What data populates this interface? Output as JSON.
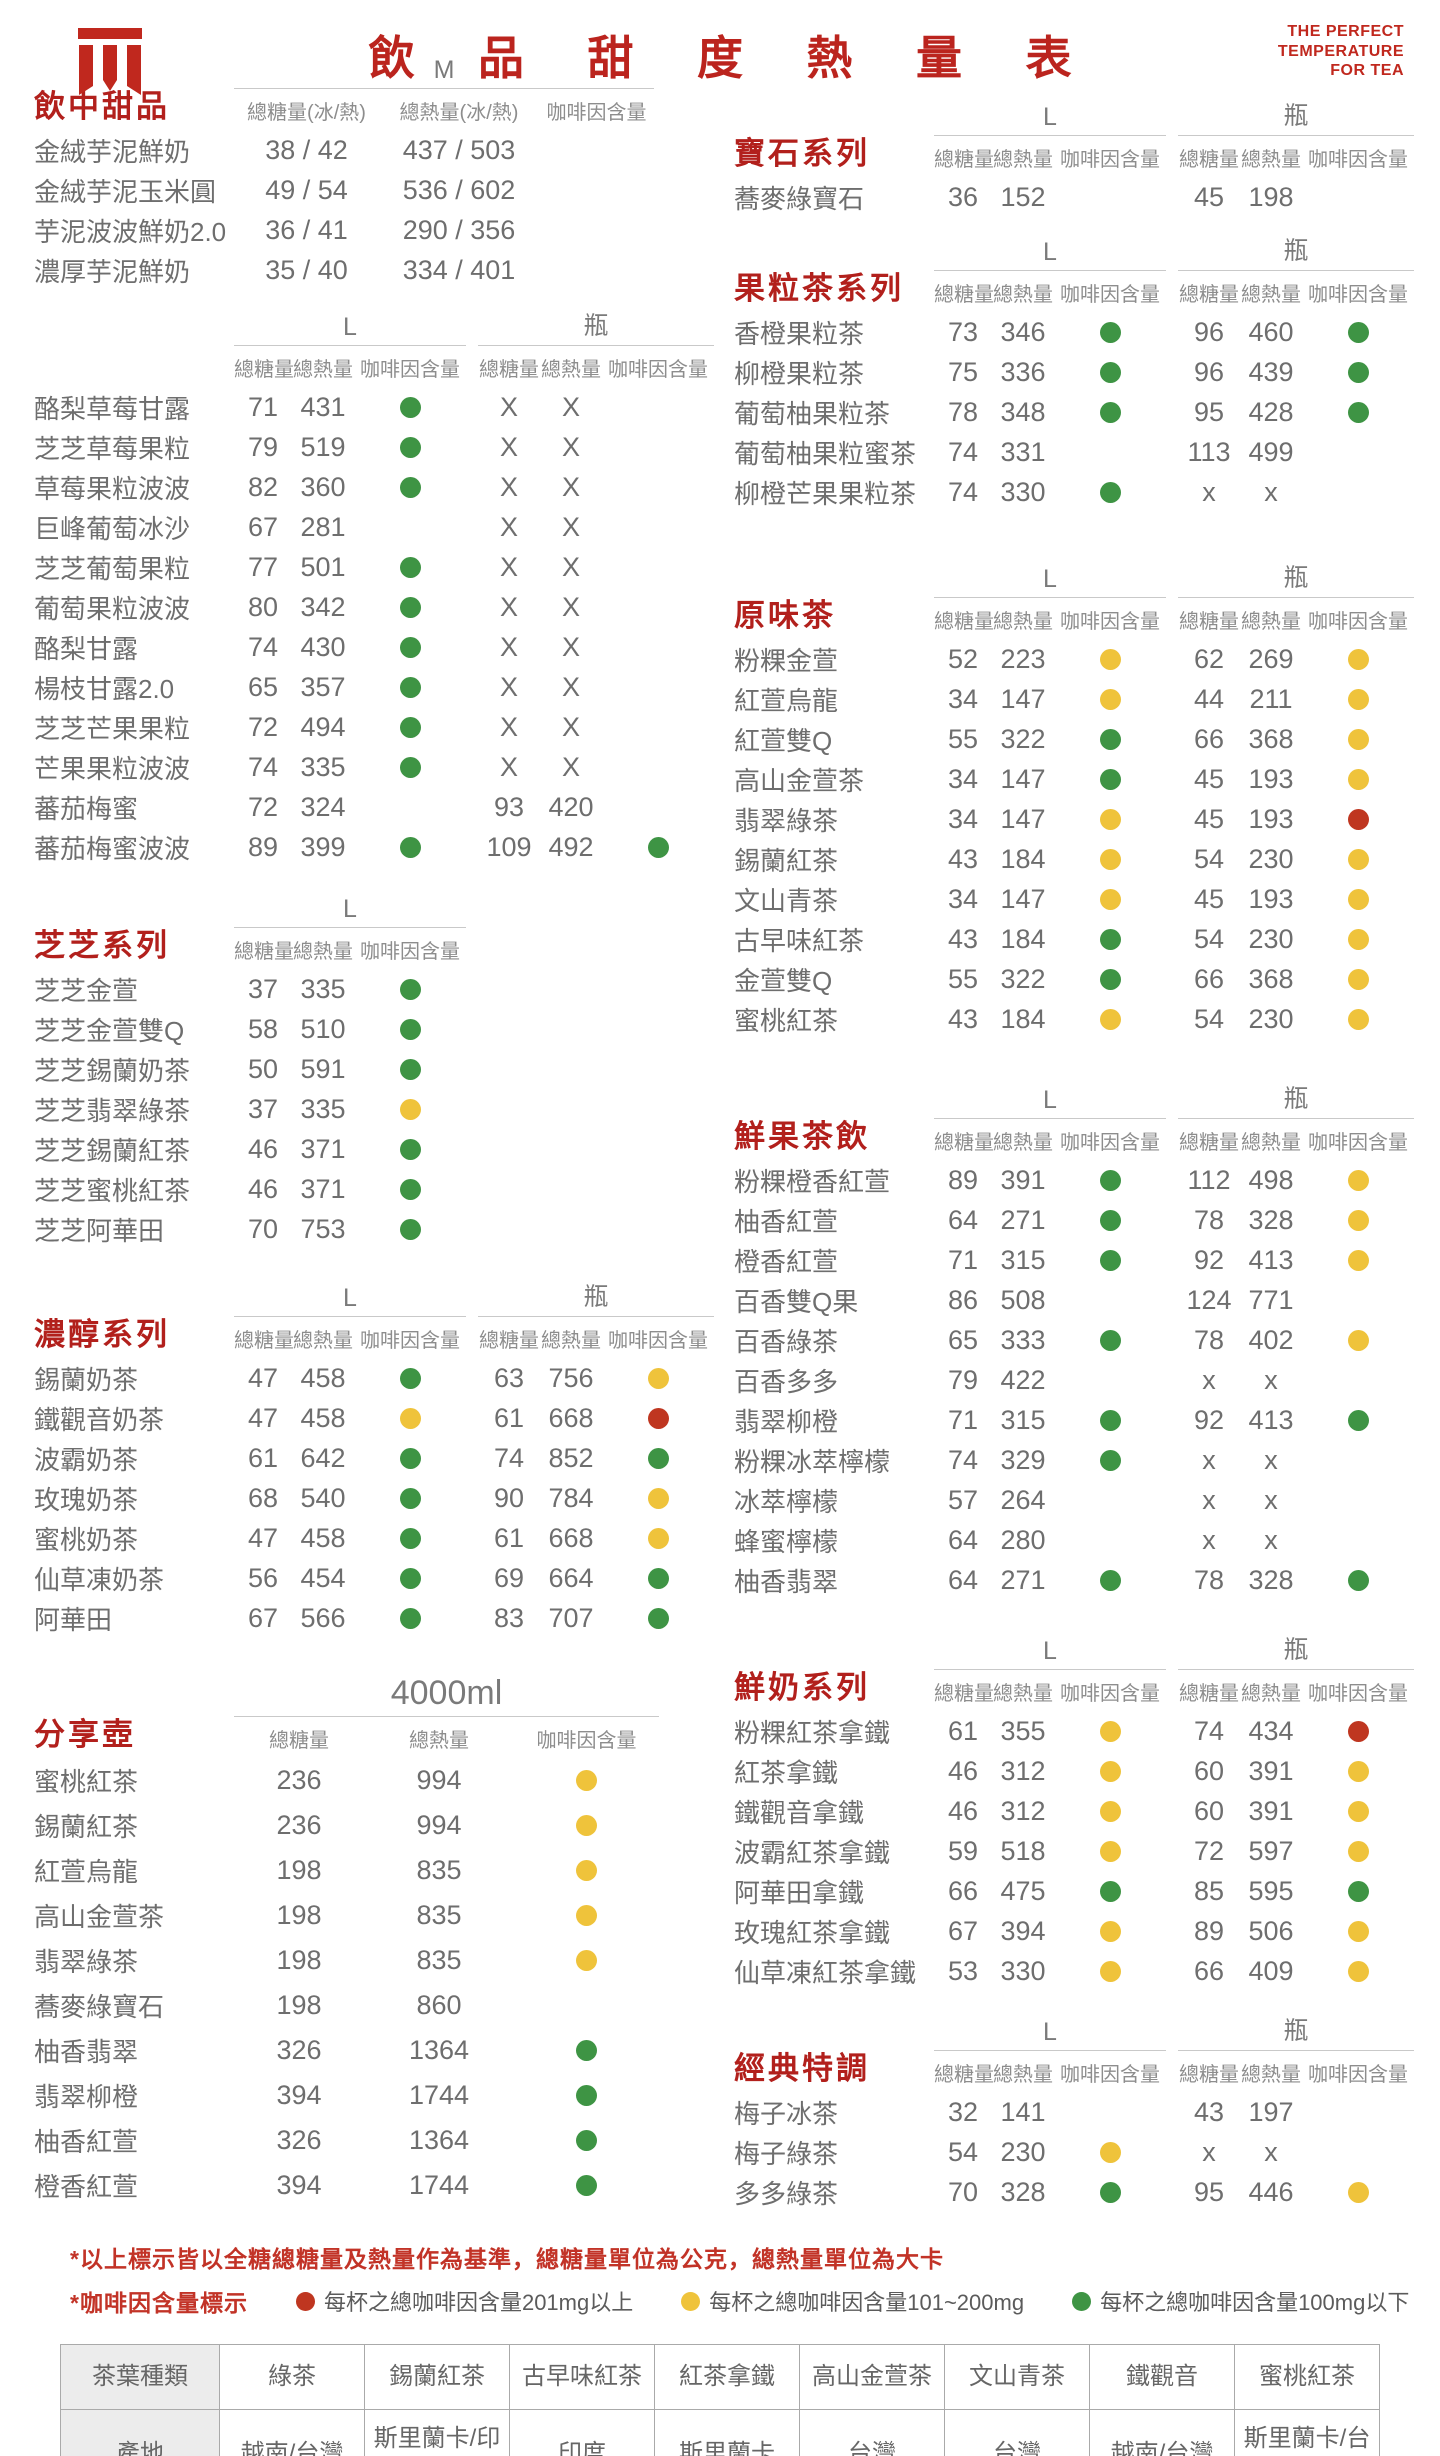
{
  "header": {
    "title": "飲 品 甜 度 熱 量 表",
    "tagline": [
      "THE PERFECT",
      "TEMPERATURE",
      "FOR TEA"
    ],
    "logo_icon": "tea-brand-logo"
  },
  "labels": {
    "sugar": "總糖量",
    "calories": "總熱量",
    "caffeine": "咖啡因含量",
    "sugar_ice_hot": "總糖量(冰/熱)",
    "calories_ice_hot": "總熱量(冰/熱)",
    "size_m": "M",
    "size_l": "L",
    "size_bottle": "瓶",
    "size_pot": "4000ml"
  },
  "colors": {
    "G": "#3e9444",
    "Y": "#efc33b",
    "R": "#bf3620",
    "accent": "#bb241e"
  },
  "left_sections": [
    {
      "title": "飲中甜品",
      "type": "M",
      "rows": [
        [
          "金絨芋泥鮮奶",
          "38 / 42",
          "437 / 503",
          ""
        ],
        [
          "金絨芋泥玉米圓",
          "49 / 54",
          "536 / 602",
          ""
        ],
        [
          "芋泥波波鮮奶2.0",
          "36 / 41",
          "290 / 356",
          ""
        ],
        [
          "濃厚芋泥鮮奶",
          "35 / 40",
          "334 / 401",
          ""
        ]
      ]
    },
    {
      "title": "",
      "type": "LB",
      "rows": [
        [
          "酪梨草莓甘露",
          "71",
          "431",
          "G",
          "X",
          "X",
          ""
        ],
        [
          "芝芝草莓果粒",
          "79",
          "519",
          "G",
          "X",
          "X",
          ""
        ],
        [
          "草莓果粒波波",
          "82",
          "360",
          "G",
          "X",
          "X",
          ""
        ],
        [
          "巨峰葡萄冰沙",
          "67",
          "281",
          "",
          "X",
          "X",
          ""
        ],
        [
          "芝芝葡萄果粒",
          "77",
          "501",
          "G",
          "X",
          "X",
          ""
        ],
        [
          "葡萄果粒波波",
          "80",
          "342",
          "G",
          "X",
          "X",
          ""
        ],
        [
          "酪梨甘露",
          "74",
          "430",
          "G",
          "X",
          "X",
          ""
        ],
        [
          "楊枝甘露2.0",
          "65",
          "357",
          "G",
          "X",
          "X",
          ""
        ],
        [
          "芝芝芒果果粒",
          "72",
          "494",
          "G",
          "X",
          "X",
          ""
        ],
        [
          "芒果果粒波波",
          "74",
          "335",
          "G",
          "X",
          "X",
          ""
        ],
        [
          "蕃茄梅蜜",
          "72",
          "324",
          "",
          "93",
          "420",
          ""
        ],
        [
          "蕃茄梅蜜波波",
          "89",
          "399",
          "G",
          "109",
          "492",
          "G"
        ]
      ]
    },
    {
      "title": "芝芝系列",
      "type": "L",
      "rows": [
        [
          "芝芝金萱",
          "37",
          "335",
          "G"
        ],
        [
          "芝芝金萱雙Q",
          "58",
          "510",
          "G"
        ],
        [
          "芝芝錫蘭奶茶",
          "50",
          "591",
          "G"
        ],
        [
          "芝芝翡翠綠茶",
          "37",
          "335",
          "Y"
        ],
        [
          "芝芝錫蘭紅茶",
          "46",
          "371",
          "G"
        ],
        [
          "芝芝蜜桃紅茶",
          "46",
          "371",
          "G"
        ],
        [
          "芝芝阿華田",
          "70",
          "753",
          "G"
        ]
      ]
    },
    {
      "title": "濃醇系列",
      "type": "LB",
      "rows": [
        [
          "錫蘭奶茶",
          "47",
          "458",
          "G",
          "63",
          "756",
          "Y"
        ],
        [
          "鐵觀音奶茶",
          "47",
          "458",
          "Y",
          "61",
          "668",
          "R"
        ],
        [
          "波霸奶茶",
          "61",
          "642",
          "G",
          "74",
          "852",
          "G"
        ],
        [
          "玫瑰奶茶",
          "68",
          "540",
          "G",
          "90",
          "784",
          "Y"
        ],
        [
          "蜜桃奶茶",
          "47",
          "458",
          "G",
          "61",
          "668",
          "Y"
        ],
        [
          "仙草凍奶茶",
          "56",
          "454",
          "G",
          "69",
          "664",
          "G"
        ],
        [
          "阿華田",
          "67",
          "566",
          "G",
          "83",
          "707",
          "G"
        ]
      ]
    },
    {
      "title": "分享壺",
      "type": "POT",
      "rows": [
        [
          "蜜桃紅茶",
          "236",
          "994",
          "Y"
        ],
        [
          "錫蘭紅茶",
          "236",
          "994",
          "Y"
        ],
        [
          "紅萱烏龍",
          "198",
          "835",
          "Y"
        ],
        [
          "高山金萱茶",
          "198",
          "835",
          "Y"
        ],
        [
          "翡翠綠茶",
          "198",
          "835",
          "Y"
        ],
        [
          "蕎麥綠寶石",
          "198",
          "860",
          ""
        ],
        [
          "柚香翡翠",
          "326",
          "1364",
          "G"
        ],
        [
          "翡翠柳橙",
          "394",
          "1744",
          "G"
        ],
        [
          "柚香紅萱",
          "326",
          "1364",
          "G"
        ],
        [
          "橙香紅萱",
          "394",
          "1744",
          "G"
        ]
      ]
    }
  ],
  "right_sections": [
    {
      "title": "寶石系列",
      "type": "LB",
      "rows": [
        [
          "蕎麥綠寶石",
          "36",
          "152",
          "",
          "45",
          "198",
          ""
        ]
      ]
    },
    {
      "title": "果粒茶系列",
      "type": "LB",
      "rows": [
        [
          "香橙果粒茶",
          "73",
          "346",
          "G",
          "96",
          "460",
          "G"
        ],
        [
          "柳橙果粒茶",
          "75",
          "336",
          "G",
          "96",
          "439",
          "G"
        ],
        [
          "葡萄柚果粒茶",
          "78",
          "348",
          "G",
          "95",
          "428",
          "G"
        ],
        [
          "葡萄柚果粒蜜茶",
          "74",
          "331",
          "",
          "113",
          "499",
          ""
        ],
        [
          "柳橙芒果果粒茶",
          "74",
          "330",
          "G",
          "x",
          "x",
          ""
        ]
      ]
    },
    {
      "title": "原味茶",
      "type": "LB",
      "rows": [
        [
          "粉粿金萱",
          "52",
          "223",
          "Y",
          "62",
          "269",
          "Y"
        ],
        [
          "紅萱烏龍",
          "34",
          "147",
          "Y",
          "44",
          "211",
          "Y"
        ],
        [
          "紅萱雙Q",
          "55",
          "322",
          "G",
          "66",
          "368",
          "Y"
        ],
        [
          "高山金萱茶",
          "34",
          "147",
          "G",
          "45",
          "193",
          "Y"
        ],
        [
          "翡翠綠茶",
          "34",
          "147",
          "Y",
          "45",
          "193",
          "R"
        ],
        [
          "錫蘭紅茶",
          "43",
          "184",
          "Y",
          "54",
          "230",
          "Y"
        ],
        [
          "文山青茶",
          "34",
          "147",
          "Y",
          "45",
          "193",
          "Y"
        ],
        [
          "古早味紅茶",
          "43",
          "184",
          "G",
          "54",
          "230",
          "Y"
        ],
        [
          "金萱雙Q",
          "55",
          "322",
          "G",
          "66",
          "368",
          "Y"
        ],
        [
          "蜜桃紅茶",
          "43",
          "184",
          "Y",
          "54",
          "230",
          "Y"
        ]
      ]
    },
    {
      "title": "鮮果茶飲",
      "type": "LB",
      "rows": [
        [
          "粉粿橙香紅萱",
          "89",
          "391",
          "G",
          "112",
          "498",
          "Y"
        ],
        [
          "柚香紅萱",
          "64",
          "271",
          "G",
          "78",
          "328",
          "Y"
        ],
        [
          "橙香紅萱",
          "71",
          "315",
          "G",
          "92",
          "413",
          "Y"
        ],
        [
          "百香雙Q果",
          "86",
          "508",
          "",
          "124",
          "771",
          ""
        ],
        [
          "百香綠茶",
          "65",
          "333",
          "G",
          "78",
          "402",
          "Y"
        ],
        [
          "百香多多",
          "79",
          "422",
          "",
          "x",
          "x",
          ""
        ],
        [
          "翡翠柳橙",
          "71",
          "315",
          "G",
          "92",
          "413",
          "G"
        ],
        [
          "粉粿冰萃檸檬",
          "74",
          "329",
          "G",
          "x",
          "x",
          ""
        ],
        [
          "冰萃檸檬",
          "57",
          "264",
          "",
          "x",
          "x",
          ""
        ],
        [
          "蜂蜜檸檬",
          "64",
          "280",
          "",
          "x",
          "x",
          ""
        ],
        [
          "柚香翡翠",
          "64",
          "271",
          "G",
          "78",
          "328",
          "G"
        ]
      ]
    },
    {
      "title": "鮮奶系列",
      "type": "LB",
      "rows": [
        [
          "粉粿紅茶拿鐵",
          "61",
          "355",
          "Y",
          "74",
          "434",
          "R"
        ],
        [
          "紅茶拿鐵",
          "46",
          "312",
          "Y",
          "60",
          "391",
          "Y"
        ],
        [
          "鐵觀音拿鐵",
          "46",
          "312",
          "Y",
          "60",
          "391",
          "Y"
        ],
        [
          "波霸紅茶拿鐵",
          "59",
          "518",
          "Y",
          "72",
          "597",
          "Y"
        ],
        [
          "阿華田拿鐵",
          "66",
          "475",
          "G",
          "85",
          "595",
          "G"
        ],
        [
          "玫瑰紅茶拿鐵",
          "67",
          "394",
          "Y",
          "89",
          "506",
          "Y"
        ],
        [
          "仙草凍紅茶拿鐵",
          "53",
          "330",
          "Y",
          "66",
          "409",
          "Y"
        ]
      ]
    },
    {
      "title": "經典特調",
      "type": "LB",
      "rows": [
        [
          "梅子冰茶",
          "32",
          "141",
          "",
          "43",
          "197",
          ""
        ],
        [
          "梅子綠茶",
          "54",
          "230",
          "Y",
          "x",
          "x",
          ""
        ],
        [
          "多多綠茶",
          "70",
          "328",
          "G",
          "95",
          "446",
          "Y"
        ]
      ]
    }
  ],
  "footnotes": {
    "line1": "*以上標示皆以全糖總糖量及熱量作為基準，總糖量單位為公克，總熱量單位為大卡",
    "line2_prefix": "*咖啡因含量標示",
    "legend": [
      {
        "dot": "R",
        "text": "每杯之總咖啡因含量201mg以上"
      },
      {
        "dot": "Y",
        "text": "每杯之總咖啡因含量101~200mg"
      },
      {
        "dot": "G",
        "text": "每杯之總咖啡因含量100mg以下"
      }
    ]
  },
  "origin_table": {
    "type_label": "茶葉種類",
    "origin_label": "產地",
    "teas": [
      "綠茶",
      "錫蘭紅茶",
      "古早味紅茶",
      "紅茶拿鐵",
      "高山金萱茶",
      "文山青茶",
      "鐵觀音",
      "蜜桃紅茶"
    ],
    "origins": [
      "越南/台灣",
      "斯里蘭卡/印度",
      "印度",
      "斯里蘭卡",
      "台灣",
      "台灣",
      "越南/台灣",
      "斯里蘭卡/台灣"
    ]
  }
}
